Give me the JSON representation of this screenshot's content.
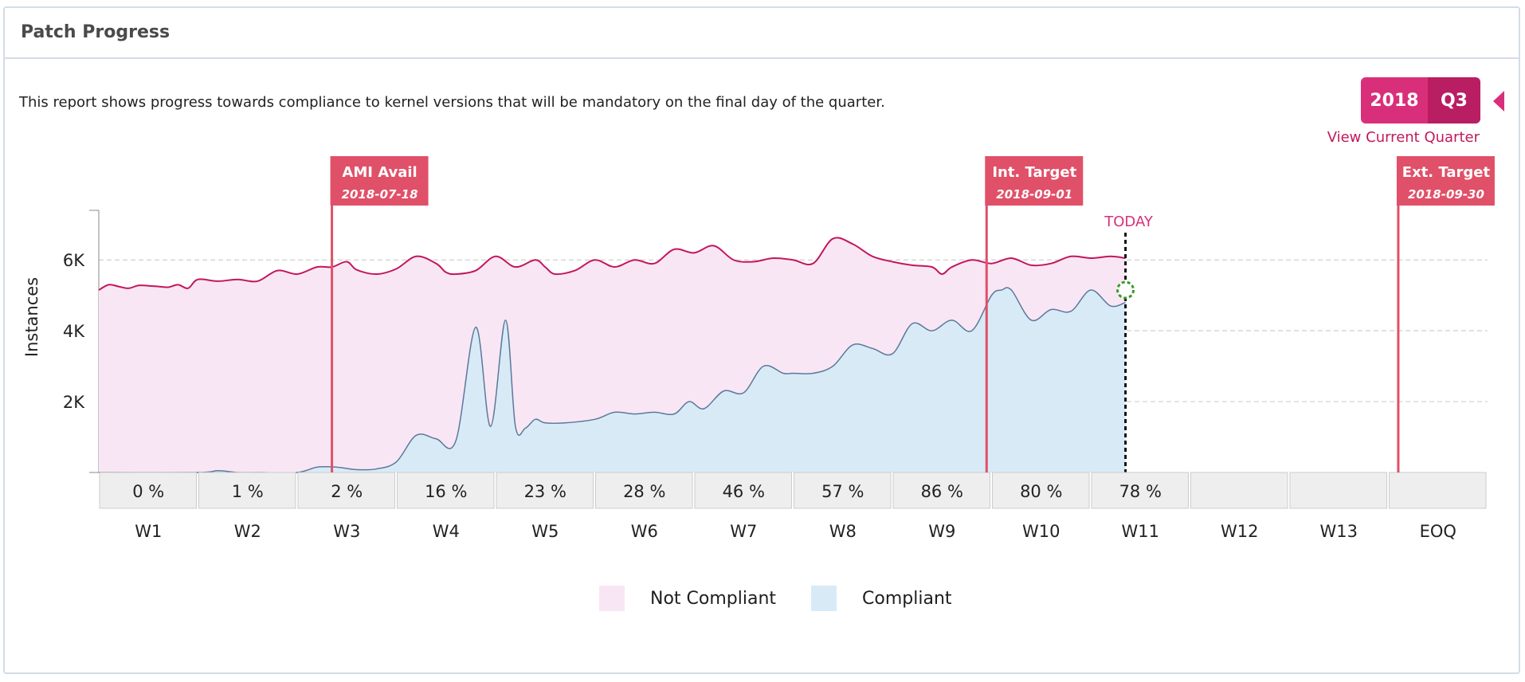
{
  "panel": {
    "title": "Patch Progress"
  },
  "description": "This report shows progress towards compliance to kernel versions that will be mandatory on the final day of the quarter.",
  "quarter_selector": {
    "year": "2018",
    "quarter": "Q3",
    "view_current": "View Current Quarter"
  },
  "colors": {
    "accent": "#d92f7a",
    "marker": "#e05068",
    "not_compliant_line": "#c2185b",
    "not_compliant_fill": "#f9e6f4",
    "compliant_line": "#5a7a9a",
    "compliant_fill": "#d9eaf7"
  },
  "chart_data": {
    "type": "area",
    "ylabel": "Instances",
    "yticks": [
      "2K",
      "4K",
      "6K"
    ],
    "ytick_values": [
      2000,
      4000,
      6000
    ],
    "ylim": [
      0,
      7400
    ],
    "weeks": [
      "W1",
      "W2",
      "W3",
      "W4",
      "W5",
      "W6",
      "W7",
      "W8",
      "W9",
      "W10",
      "W11",
      "W12",
      "W13",
      "EOQ"
    ],
    "percentages": [
      "0 %",
      "1 %",
      "2 %",
      "16 %",
      "23 %",
      "28 %",
      "46 %",
      "57 %",
      "86 %",
      "80 %",
      "78 %",
      "",
      "",
      ""
    ],
    "series": [
      {
        "name": "Not Compliant",
        "x": [
          0,
          0.1,
          0.2,
          0.3,
          0.4,
          0.5,
          0.6,
          0.7,
          0.8,
          0.9,
          1.0,
          1.2,
          1.4,
          1.6,
          1.8,
          2.0,
          2.2,
          2.35,
          2.5,
          2.6,
          2.8,
          3.0,
          3.2,
          3.4,
          3.5,
          3.6,
          3.8,
          4.0,
          4.2,
          4.4,
          4.5,
          4.6,
          4.8,
          5.0,
          5.2,
          5.4,
          5.6,
          5.8,
          6.0,
          6.2,
          6.4,
          6.6,
          6.8,
          7.0,
          7.2,
          7.4,
          7.6,
          7.8,
          8.0,
          8.2,
          8.4,
          8.5,
          8.6,
          8.8,
          9.0,
          9.2,
          9.4,
          9.6,
          9.8,
          10.0,
          10.2,
          10.35
        ],
        "y": [
          5150,
          5300,
          5250,
          5200,
          5280,
          5270,
          5250,
          5230,
          5300,
          5200,
          5450,
          5400,
          5450,
          5400,
          5700,
          5600,
          5800,
          5800,
          5950,
          5720,
          5600,
          5750,
          6100,
          5900,
          5650,
          5600,
          5700,
          6100,
          5800,
          6000,
          5800,
          5600,
          5700,
          6000,
          5800,
          6000,
          5900,
          6300,
          6200,
          6400,
          6000,
          5950,
          6050,
          6000,
          5900,
          6600,
          6450,
          6100,
          5950,
          5850,
          5800,
          5600,
          5800,
          6000,
          5900,
          6050,
          5850,
          5900,
          6100,
          6050,
          6100,
          6050
        ]
      },
      {
        "name": "Compliant",
        "x": [
          0,
          1.0,
          1.2,
          1.4,
          1.6,
          2.0,
          2.2,
          2.4,
          2.6,
          2.8,
          3.0,
          3.2,
          3.4,
          3.6,
          3.8,
          3.95,
          4.1,
          4.2,
          4.3,
          4.4,
          4.5,
          4.7,
          5.0,
          5.2,
          5.4,
          5.6,
          5.8,
          5.95,
          6.1,
          6.3,
          6.5,
          6.7,
          6.9,
          7.0,
          7.2,
          7.4,
          7.6,
          7.8,
          8.0,
          8.2,
          8.4,
          8.6,
          8.8,
          9.0,
          9.1,
          9.2,
          9.4,
          9.6,
          9.8,
          10.0,
          10.2,
          10.35
        ],
        "y": [
          0,
          0,
          50,
          0,
          0,
          0,
          150,
          150,
          80,
          100,
          300,
          1050,
          950,
          900,
          4100,
          1300,
          4300,
          1300,
          1250,
          1500,
          1400,
          1400,
          1500,
          1700,
          1650,
          1700,
          1650,
          2000,
          1800,
          2300,
          2250,
          3000,
          2800,
          2800,
          2800,
          3000,
          3600,
          3500,
          3350,
          4200,
          4000,
          4300,
          4000,
          5000,
          5150,
          5150,
          4300,
          4600,
          4550,
          5150,
          4700,
          4800
        ]
      }
    ],
    "today_value": 5150,
    "today_label": "TODAY",
    "markers": [
      {
        "label": "AMI Avail",
        "date": "2018-07-18",
        "position": 2.35
      },
      {
        "label": "Int. Target",
        "date": "2018-09-01",
        "position": 8.95
      },
      {
        "label": "Ext. Target",
        "date": "2018-09-30",
        "position": 13.1
      }
    ],
    "today_position": 10.35,
    "legend": [
      "Not Compliant",
      "Compliant"
    ]
  }
}
